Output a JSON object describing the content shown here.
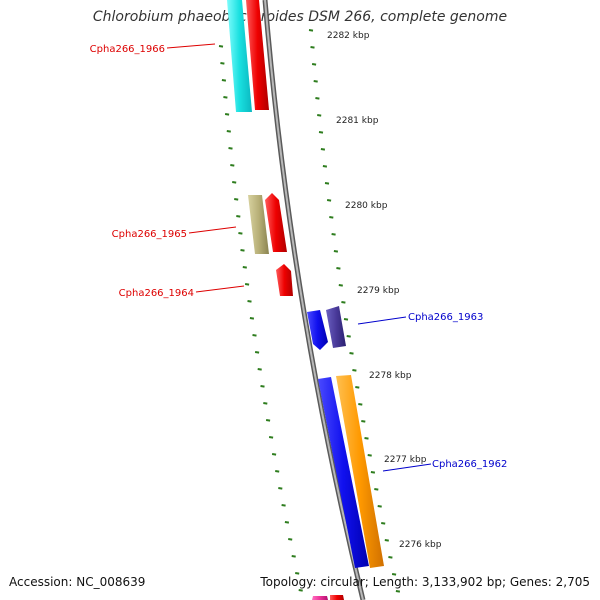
{
  "title": "Chlorobium phaeobacteroides DSM 266, complete genome",
  "footer": {
    "accession": "Accession: NC_008639",
    "summary": "Topology: circular; Length: 3,133,902 bp; Genes: 2,705"
  },
  "colors": {
    "backbone": "#8c8c8c",
    "tick": "#2e7d1e",
    "label_red": "#dd0000",
    "label_blue": "#0000cc",
    "scale_text": "#222222"
  },
  "scale": {
    "labels": [
      "2282 kbp",
      "2281 kbp",
      "2280 kbp",
      "2279 kbp",
      "2278 kbp",
      "2277 kbp",
      "2276 kbp"
    ]
  },
  "genes": [
    {
      "id": "Cpha266_1966",
      "label": "Cpha266_1966",
      "color": "#dd0000"
    },
    {
      "id": "Cpha266_1965",
      "label": "Cpha266_1965",
      "color": "#dd0000"
    },
    {
      "id": "Cpha266_1964",
      "label": "Cpha266_1964",
      "color": "#dd0000"
    },
    {
      "id": "Cpha266_1963",
      "label": "Cpha266_1963",
      "color": "#0000cc"
    },
    {
      "id": "Cpha266_1962",
      "label": "Cpha266_1962",
      "color": "#0000cc"
    }
  ],
  "features": [
    {
      "name": "cyan-gene-feature",
      "color": "#22e8e8"
    },
    {
      "name": "red-gene-feature-top",
      "color": "#ee0000"
    },
    {
      "name": "tan-gene-feature",
      "color": "#b8b078"
    },
    {
      "name": "red-gene-feature-1965",
      "color": "#ee0000"
    },
    {
      "name": "red-gene-feature-1964",
      "color": "#ee0000"
    },
    {
      "name": "blue-gene-feature-1963",
      "color": "#1a1aee"
    },
    {
      "name": "purple-gene-feature-1963",
      "color": "#4a3a9a"
    },
    {
      "name": "blue-gene-feature-1962",
      "color": "#1a1aee"
    },
    {
      "name": "orange-gene-feature-1962",
      "color": "#ff9900"
    },
    {
      "name": "magenta-gene-feature-bottom",
      "color": "#ee3399"
    },
    {
      "name": "red-gene-feature-bottom",
      "color": "#ee0000"
    }
  ]
}
